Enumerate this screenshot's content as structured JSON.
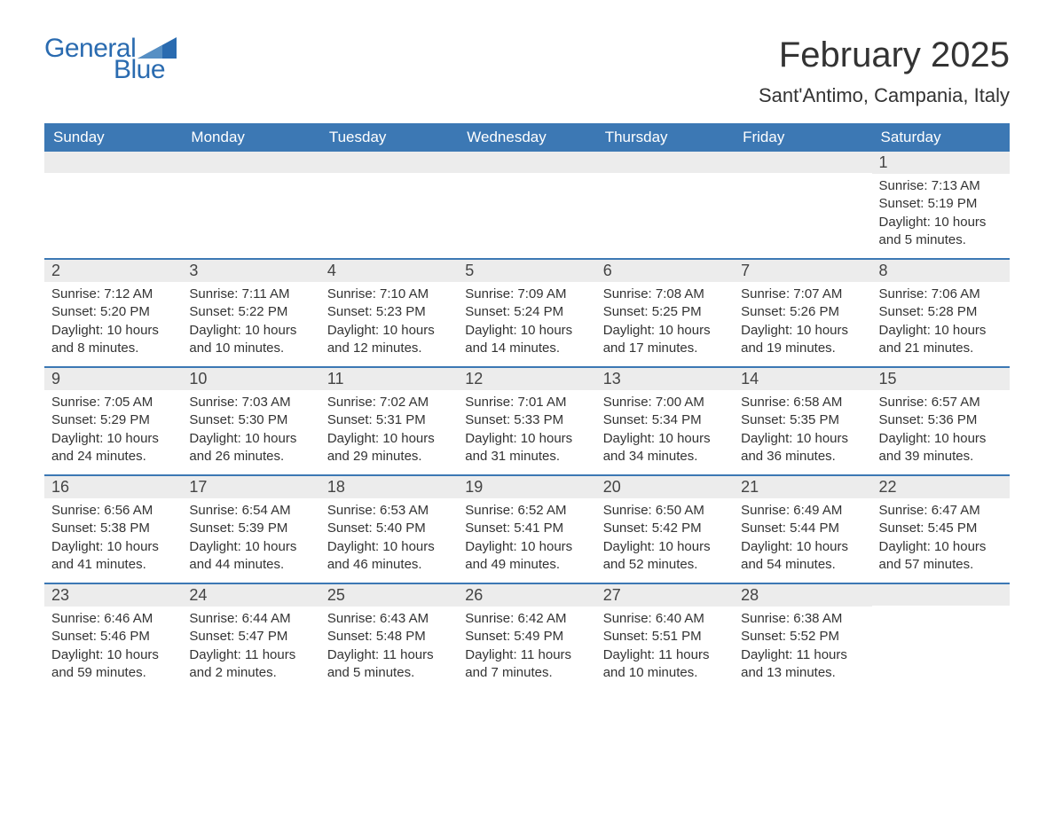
{
  "colors": {
    "brand_blue": "#3c78b4",
    "logo_blue": "#2a6bb0",
    "daynum_bg": "#ececec",
    "text": "#333333",
    "bg": "#ffffff",
    "row_border": "#3c78b4"
  },
  "typography": {
    "title_fontsize": 40,
    "location_fontsize": 22,
    "header_fontsize": 17,
    "daynum_fontsize": 18,
    "body_fontsize": 15,
    "logo_fontsize": 30,
    "font_family": "Arial"
  },
  "logo": {
    "word1": "General",
    "word2": "Blue"
  },
  "title": "February 2025",
  "location": "Sant'Antimo, Campania, Italy",
  "day_headers": [
    "Sunday",
    "Monday",
    "Tuesday",
    "Wednesday",
    "Thursday",
    "Friday",
    "Saturday"
  ],
  "weeks": [
    [
      {
        "day": "",
        "sunrise": "",
        "sunset": "",
        "daylight": ""
      },
      {
        "day": "",
        "sunrise": "",
        "sunset": "",
        "daylight": ""
      },
      {
        "day": "",
        "sunrise": "",
        "sunset": "",
        "daylight": ""
      },
      {
        "day": "",
        "sunrise": "",
        "sunset": "",
        "daylight": ""
      },
      {
        "day": "",
        "sunrise": "",
        "sunset": "",
        "daylight": ""
      },
      {
        "day": "",
        "sunrise": "",
        "sunset": "",
        "daylight": ""
      },
      {
        "day": "1",
        "sunrise": "Sunrise: 7:13 AM",
        "sunset": "Sunset: 5:19 PM",
        "daylight": "Daylight: 10 hours and 5 minutes."
      }
    ],
    [
      {
        "day": "2",
        "sunrise": "Sunrise: 7:12 AM",
        "sunset": "Sunset: 5:20 PM",
        "daylight": "Daylight: 10 hours and 8 minutes."
      },
      {
        "day": "3",
        "sunrise": "Sunrise: 7:11 AM",
        "sunset": "Sunset: 5:22 PM",
        "daylight": "Daylight: 10 hours and 10 minutes."
      },
      {
        "day": "4",
        "sunrise": "Sunrise: 7:10 AM",
        "sunset": "Sunset: 5:23 PM",
        "daylight": "Daylight: 10 hours and 12 minutes."
      },
      {
        "day": "5",
        "sunrise": "Sunrise: 7:09 AM",
        "sunset": "Sunset: 5:24 PM",
        "daylight": "Daylight: 10 hours and 14 minutes."
      },
      {
        "day": "6",
        "sunrise": "Sunrise: 7:08 AM",
        "sunset": "Sunset: 5:25 PM",
        "daylight": "Daylight: 10 hours and 17 minutes."
      },
      {
        "day": "7",
        "sunrise": "Sunrise: 7:07 AM",
        "sunset": "Sunset: 5:26 PM",
        "daylight": "Daylight: 10 hours and 19 minutes."
      },
      {
        "day": "8",
        "sunrise": "Sunrise: 7:06 AM",
        "sunset": "Sunset: 5:28 PM",
        "daylight": "Daylight: 10 hours and 21 minutes."
      }
    ],
    [
      {
        "day": "9",
        "sunrise": "Sunrise: 7:05 AM",
        "sunset": "Sunset: 5:29 PM",
        "daylight": "Daylight: 10 hours and 24 minutes."
      },
      {
        "day": "10",
        "sunrise": "Sunrise: 7:03 AM",
        "sunset": "Sunset: 5:30 PM",
        "daylight": "Daylight: 10 hours and 26 minutes."
      },
      {
        "day": "11",
        "sunrise": "Sunrise: 7:02 AM",
        "sunset": "Sunset: 5:31 PM",
        "daylight": "Daylight: 10 hours and 29 minutes."
      },
      {
        "day": "12",
        "sunrise": "Sunrise: 7:01 AM",
        "sunset": "Sunset: 5:33 PM",
        "daylight": "Daylight: 10 hours and 31 minutes."
      },
      {
        "day": "13",
        "sunrise": "Sunrise: 7:00 AM",
        "sunset": "Sunset: 5:34 PM",
        "daylight": "Daylight: 10 hours and 34 minutes."
      },
      {
        "day": "14",
        "sunrise": "Sunrise: 6:58 AM",
        "sunset": "Sunset: 5:35 PM",
        "daylight": "Daylight: 10 hours and 36 minutes."
      },
      {
        "day": "15",
        "sunrise": "Sunrise: 6:57 AM",
        "sunset": "Sunset: 5:36 PM",
        "daylight": "Daylight: 10 hours and 39 minutes."
      }
    ],
    [
      {
        "day": "16",
        "sunrise": "Sunrise: 6:56 AM",
        "sunset": "Sunset: 5:38 PM",
        "daylight": "Daylight: 10 hours and 41 minutes."
      },
      {
        "day": "17",
        "sunrise": "Sunrise: 6:54 AM",
        "sunset": "Sunset: 5:39 PM",
        "daylight": "Daylight: 10 hours and 44 minutes."
      },
      {
        "day": "18",
        "sunrise": "Sunrise: 6:53 AM",
        "sunset": "Sunset: 5:40 PM",
        "daylight": "Daylight: 10 hours and 46 minutes."
      },
      {
        "day": "19",
        "sunrise": "Sunrise: 6:52 AM",
        "sunset": "Sunset: 5:41 PM",
        "daylight": "Daylight: 10 hours and 49 minutes."
      },
      {
        "day": "20",
        "sunrise": "Sunrise: 6:50 AM",
        "sunset": "Sunset: 5:42 PM",
        "daylight": "Daylight: 10 hours and 52 minutes."
      },
      {
        "day": "21",
        "sunrise": "Sunrise: 6:49 AM",
        "sunset": "Sunset: 5:44 PM",
        "daylight": "Daylight: 10 hours and 54 minutes."
      },
      {
        "day": "22",
        "sunrise": "Sunrise: 6:47 AM",
        "sunset": "Sunset: 5:45 PM",
        "daylight": "Daylight: 10 hours and 57 minutes."
      }
    ],
    [
      {
        "day": "23",
        "sunrise": "Sunrise: 6:46 AM",
        "sunset": "Sunset: 5:46 PM",
        "daylight": "Daylight: 10 hours and 59 minutes."
      },
      {
        "day": "24",
        "sunrise": "Sunrise: 6:44 AM",
        "sunset": "Sunset: 5:47 PM",
        "daylight": "Daylight: 11 hours and 2 minutes."
      },
      {
        "day": "25",
        "sunrise": "Sunrise: 6:43 AM",
        "sunset": "Sunset: 5:48 PM",
        "daylight": "Daylight: 11 hours and 5 minutes."
      },
      {
        "day": "26",
        "sunrise": "Sunrise: 6:42 AM",
        "sunset": "Sunset: 5:49 PM",
        "daylight": "Daylight: 11 hours and 7 minutes."
      },
      {
        "day": "27",
        "sunrise": "Sunrise: 6:40 AM",
        "sunset": "Sunset: 5:51 PM",
        "daylight": "Daylight: 11 hours and 10 minutes."
      },
      {
        "day": "28",
        "sunrise": "Sunrise: 6:38 AM",
        "sunset": "Sunset: 5:52 PM",
        "daylight": "Daylight: 11 hours and 13 minutes."
      },
      {
        "day": "",
        "sunrise": "",
        "sunset": "",
        "daylight": ""
      }
    ]
  ]
}
